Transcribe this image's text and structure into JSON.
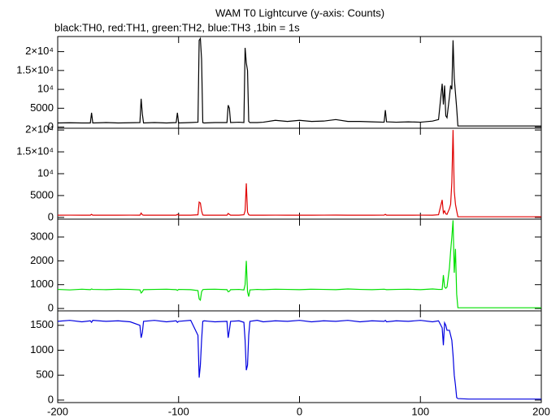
{
  "chart_data": [
    {
      "type": "line",
      "title": "WAM T0 Lightcurve (y-axis: Counts)",
      "subtitle": "black:TH0, red:TH1, green:TH2, blue:TH3 ,1bin = 1s",
      "color": "#000000",
      "x": [
        -200,
        -190,
        -180,
        -173,
        -172,
        -171,
        -160,
        -150,
        -140,
        -132,
        -131,
        -130,
        -129,
        -120,
        -110,
        -102,
        -101,
        -100,
        -90,
        -84,
        -83,
        -82,
        -81,
        -80,
        -79,
        -70,
        -60,
        -59,
        -58,
        -57,
        -50,
        -46,
        -45,
        -44,
        -43,
        -42,
        -41,
        -35,
        -30,
        -20,
        -10,
        0,
        10,
        20,
        30,
        40,
        50,
        60,
        70,
        71,
        72,
        80,
        90,
        100,
        110,
        115,
        118,
        119,
        120,
        121,
        122,
        124,
        125,
        126,
        127,
        128,
        129,
        130,
        131,
        140,
        150,
        160,
        170,
        180,
        190,
        200
      ],
      "values": [
        1100,
        1150,
        1100,
        1100,
        3800,
        1100,
        1200,
        1100,
        1150,
        1200,
        7500,
        3500,
        1100,
        1200,
        1100,
        1200,
        3800,
        1100,
        1200,
        1300,
        23000,
        23500,
        18000,
        1200,
        1100,
        1200,
        1200,
        5800,
        5000,
        1200,
        1300,
        1200,
        21000,
        17000,
        15000,
        1500,
        1200,
        1200,
        1300,
        1800,
        1500,
        1800,
        1500,
        1600,
        2000,
        1500,
        1500,
        1400,
        1300,
        4500,
        1400,
        1300,
        1400,
        1300,
        1600,
        2000,
        11500,
        6000,
        11000,
        3000,
        2500,
        8000,
        11000,
        10000,
        23000,
        13000,
        9000,
        5000,
        300,
        300,
        300,
        300,
        300,
        300,
        300,
        300
      ],
      "xlim": [
        -200,
        200
      ],
      "xticks": [
        -200,
        -100,
        0,
        100,
        200
      ],
      "ylim": [
        -300,
        24000
      ],
      "yticks": [
        0,
        5000,
        {
          "value": 10000,
          "label": "10⁴"
        },
        {
          "value": 15000,
          "label": "1.5×10⁴"
        },
        {
          "value": 20000,
          "label": "2×10⁴"
        }
      ]
    },
    {
      "type": "line",
      "color": "#e00000",
      "x": [
        -200,
        -190,
        -180,
        -173,
        -172,
        -171,
        -160,
        -150,
        -140,
        -132,
        -131,
        -130,
        -129,
        -120,
        -110,
        -102,
        -101,
        -100,
        -90,
        -84,
        -83,
        -82,
        -81,
        -80,
        -79,
        -70,
        -60,
        -59,
        -58,
        -57,
        -50,
        -46,
        -45,
        -44,
        -43,
        -42,
        -41,
        -35,
        -30,
        -20,
        -10,
        0,
        10,
        20,
        30,
        40,
        50,
        60,
        70,
        71,
        72,
        80,
        90,
        100,
        110,
        115,
        118,
        119,
        120,
        121,
        122,
        124,
        125,
        126,
        127,
        128,
        129,
        130,
        131,
        140,
        150,
        160,
        170,
        180,
        190,
        200
      ],
      "values": [
        500,
        520,
        500,
        500,
        700,
        500,
        510,
        500,
        520,
        500,
        1000,
        600,
        500,
        510,
        500,
        500,
        700,
        500,
        510,
        600,
        3500,
        3300,
        1500,
        550,
        500,
        510,
        500,
        900,
        700,
        500,
        510,
        600,
        1500,
        7800,
        1200,
        600,
        500,
        510,
        500,
        520,
        500,
        510,
        500,
        520,
        530,
        500,
        510,
        500,
        520,
        700,
        500,
        510,
        500,
        520,
        500,
        600,
        4000,
        1000,
        1500,
        800,
        700,
        2000,
        3000,
        8000,
        20000,
        6000,
        3000,
        1500,
        150,
        150,
        150,
        150,
        150,
        150,
        150,
        150
      ],
      "xlim": [
        -200,
        200
      ],
      "xticks": [
        -200,
        -100,
        0,
        100,
        200
      ],
      "ylim": [
        -400,
        20400
      ],
      "yticks": [
        0,
        5000,
        {
          "value": 10000,
          "label": "10⁴"
        },
        {
          "value": 15000,
          "label": "1.5×10⁴"
        },
        {
          "value": 20000,
          "label": "2×10⁴"
        }
      ]
    },
    {
      "type": "line",
      "color": "#00e000",
      "x": [
        -200,
        -190,
        -180,
        -173,
        -172,
        -171,
        -160,
        -150,
        -140,
        -132,
        -131,
        -130,
        -129,
        -120,
        -110,
        -102,
        -101,
        -100,
        -90,
        -84,
        -83,
        -82,
        -81,
        -80,
        -79,
        -70,
        -60,
        -59,
        -58,
        -57,
        -50,
        -46,
        -45,
        -44,
        -43,
        -42,
        -41,
        -35,
        -30,
        -20,
        -10,
        0,
        10,
        20,
        30,
        40,
        50,
        60,
        70,
        71,
        72,
        80,
        90,
        100,
        110,
        115,
        118,
        119,
        120,
        121,
        122,
        124,
        125,
        126,
        127,
        128,
        129,
        130,
        131,
        140,
        150,
        160,
        170,
        180,
        190,
        200
      ],
      "values": [
        800,
        780,
        810,
        790,
        820,
        800,
        790,
        810,
        800,
        780,
        650,
        700,
        790,
        800,
        810,
        790,
        760,
        800,
        790,
        750,
        400,
        350,
        700,
        790,
        800,
        810,
        790,
        700,
        720,
        790,
        800,
        780,
        1000,
        2000,
        700,
        500,
        780,
        800,
        790,
        810,
        800,
        790,
        810,
        800,
        790,
        820,
        800,
        790,
        810,
        800,
        790,
        800,
        810,
        790,
        820,
        800,
        800,
        1400,
        900,
        850,
        900,
        1700,
        2400,
        3000,
        3700,
        1500,
        2500,
        600,
        30,
        30,
        30,
        30,
        30,
        30,
        30,
        30
      ],
      "xlim": [
        -200,
        200
      ],
      "xticks": [
        -200,
        -100,
        0,
        100,
        200
      ],
      "ylim": [
        -100,
        3750
      ],
      "yticks": [
        0,
        1000,
        2000,
        3000
      ]
    },
    {
      "type": "line",
      "color": "#0000e0",
      "x": [
        -200,
        -190,
        -180,
        -173,
        -172,
        -171,
        -160,
        -150,
        -140,
        -132,
        -131,
        -130,
        -129,
        -120,
        -110,
        -102,
        -101,
        -100,
        -90,
        -84,
        -83,
        -82,
        -81,
        -80,
        -79,
        -70,
        -60,
        -59,
        -58,
        -57,
        -50,
        -46,
        -45,
        -44,
        -43,
        -42,
        -41,
        -35,
        -30,
        -20,
        -10,
        0,
        10,
        20,
        30,
        40,
        50,
        60,
        70,
        71,
        72,
        80,
        90,
        100,
        110,
        115,
        118,
        119,
        120,
        121,
        122,
        124,
        125,
        126,
        127,
        128,
        129,
        130,
        131,
        140,
        150,
        160,
        170,
        180,
        190,
        200
      ],
      "values": [
        1580,
        1600,
        1570,
        1590,
        1560,
        1600,
        1580,
        1590,
        1570,
        1500,
        1250,
        1350,
        1580,
        1600,
        1570,
        1590,
        1560,
        1580,
        1600,
        1300,
        450,
        700,
        1200,
        1580,
        1590,
        1570,
        1580,
        1250,
        1400,
        1580,
        1590,
        1560,
        1200,
        600,
        700,
        1300,
        1580,
        1600,
        1570,
        1590,
        1580,
        1600,
        1570,
        1590,
        1580,
        1600,
        1570,
        1590,
        1580,
        1600,
        1570,
        1590,
        1580,
        1600,
        1570,
        1590,
        1450,
        1100,
        1550,
        1500,
        1400,
        1400,
        1300,
        1200,
        900,
        500,
        300,
        50,
        30,
        20,
        20,
        20,
        20,
        20,
        20,
        20
      ],
      "xlim": [
        -200,
        200
      ],
      "xticks": [
        -200,
        -100,
        0,
        100,
        200
      ],
      "ylim": [
        -50,
        1790
      ],
      "yticks": [
        0,
        500,
        1000,
        1500
      ]
    }
  ]
}
